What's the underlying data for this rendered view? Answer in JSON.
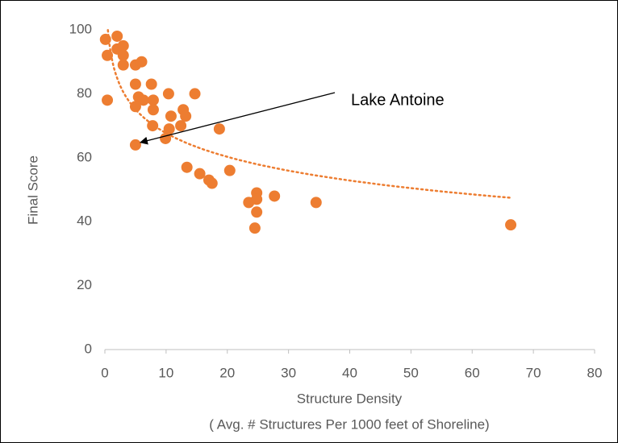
{
  "chart_data": {
    "type": "scatter",
    "y_label": "Final Score",
    "x_label": [
      "Structure Density",
      "( Avg. # Structures Per 1000 feet of Shoreline)"
    ],
    "x": [
      0.1,
      0.4,
      0.4,
      2,
      2,
      3,
      3,
      3,
      5,
      6,
      5,
      5.5,
      6.3,
      7.6,
      7.9,
      7.9,
      5,
      10.4,
      10.8,
      12.8,
      13.2,
      12.4,
      10.5,
      9.9,
      7.8,
      14.7,
      18.7,
      5,
      13.4,
      15.5,
      17,
      17.5,
      20.4,
      23.5,
      24.8,
      24.8,
      24.8,
      24.5,
      27.7,
      34.5,
      66.3
    ],
    "y": [
      97,
      92,
      78,
      98,
      94,
      95,
      92,
      89,
      89,
      90,
      83,
      79,
      78,
      83,
      78,
      75,
      76,
      80,
      73,
      75,
      73,
      70,
      69,
      66,
      70,
      80,
      69,
      64,
      57,
      55,
      53,
      52,
      56,
      46,
      49,
      47,
      43,
      38,
      48,
      46,
      39
    ],
    "color": "#ED7D31",
    "trendline": {
      "type": "logarithmic",
      "color": "#ED7D31"
    },
    "annotation": {
      "text": "Lake Antoine",
      "x": 5,
      "y": 64
    },
    "xlim": [
      0,
      80
    ],
    "xticks": [
      0,
      10,
      20,
      30,
      40,
      50,
      60,
      70,
      80
    ],
    "ylim": [
      0,
      100
    ],
    "yticks": [
      0,
      20,
      40,
      60,
      80,
      100
    ],
    "grid": false
  }
}
